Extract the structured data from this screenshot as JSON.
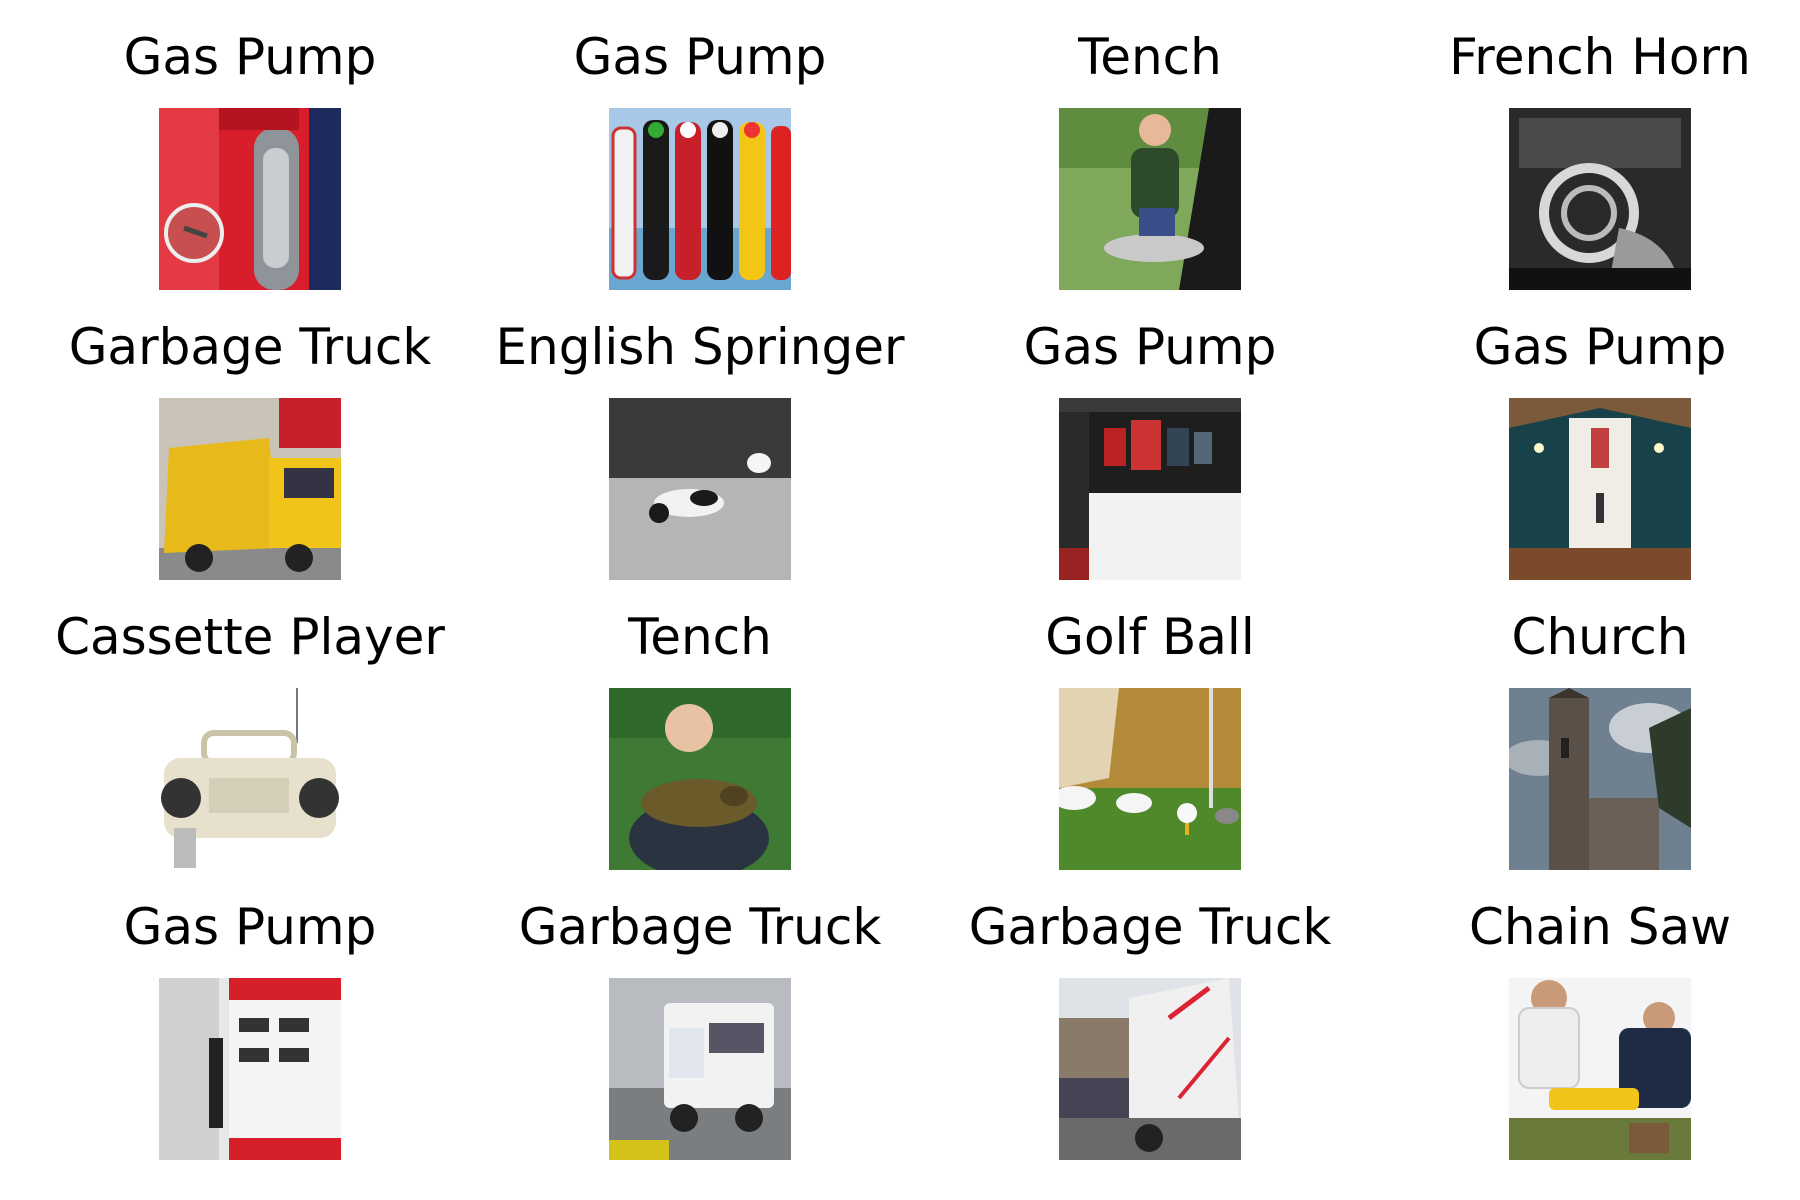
{
  "grid": {
    "cells": [
      {
        "label": "Gas Pump",
        "image": "gas-pump-red-closeup"
      },
      {
        "label": "Gas Pump",
        "image": "gas-pumps-vintage-row"
      },
      {
        "label": "Tench",
        "image": "man-kneeling-with-fish"
      },
      {
        "label": "French Horn",
        "image": "french-horn-monochrome"
      },
      {
        "label": "Garbage Truck",
        "image": "yellow-garbage-truck"
      },
      {
        "label": "English Springer",
        "image": "dog-running-in-grass-bw"
      },
      {
        "label": "Gas Pump",
        "image": "media-player-screenshot"
      },
      {
        "label": "Gas Pump",
        "image": "church-interior"
      },
      {
        "label": "Cassette Player",
        "image": "boombox-cassette-player"
      },
      {
        "label": "Tench",
        "image": "man-holding-tench"
      },
      {
        "label": "Golf Ball",
        "image": "golf-ball-on-tee"
      },
      {
        "label": "Church",
        "image": "stone-church-tower"
      },
      {
        "label": "Gas Pump",
        "image": "getty-gas-pump"
      },
      {
        "label": "Garbage Truck",
        "image": "white-garbage-truck-road"
      },
      {
        "label": "Garbage Truck",
        "image": "garbage-truck-street"
      },
      {
        "label": "Chain Saw",
        "image": "men-with-chainsaw"
      }
    ]
  }
}
